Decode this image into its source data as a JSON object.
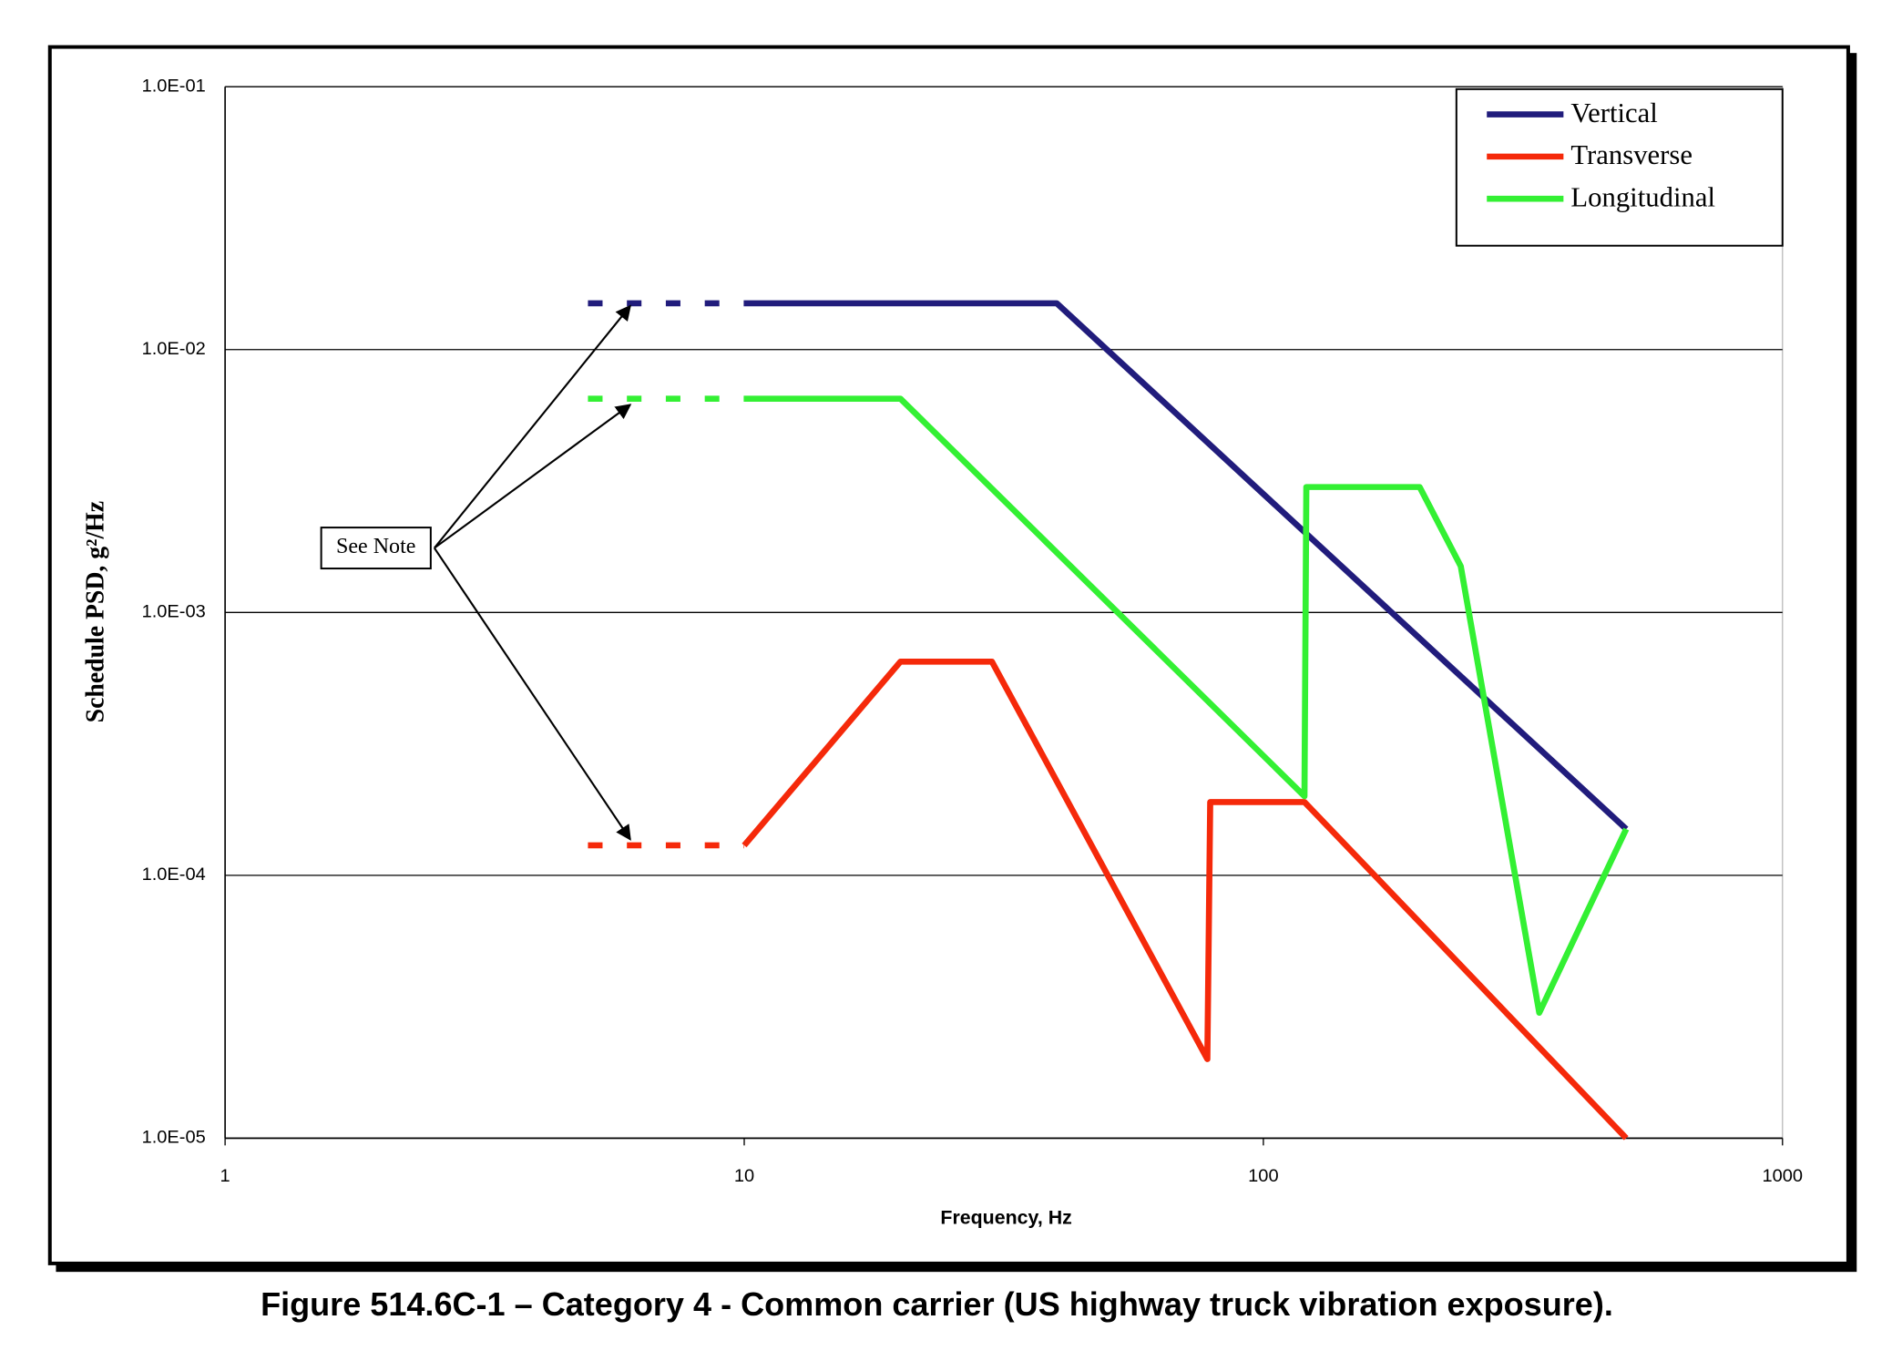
{
  "chart_data": {
    "type": "line",
    "caption": "Figure 514.6C-1 – Category 4 - Common carrier (US highway truck vibration exposure).",
    "x_label": "Frequency, Hz",
    "y_label": "Schedule PSD, g²/Hz",
    "annotation": "See Note",
    "log_x": true,
    "log_y": true,
    "grid": true,
    "legend": "top-right",
    "xlim": [
      1,
      1000
    ],
    "xticks": [
      1,
      10,
      100,
      1000
    ],
    "ylim": [
      1e-05,
      0.1
    ],
    "yticks": [
      {
        "value": 0.1,
        "label": "1.0E-01"
      },
      {
        "value": 0.01,
        "label": "1.0E-02"
      },
      {
        "value": 0.001,
        "label": "1.0E-03"
      },
      {
        "value": 0.0001,
        "label": "1.0E-04"
      },
      {
        "value": 1e-05,
        "label": "1.0E-05"
      }
    ],
    "series": [
      {
        "name": "Vertical",
        "color": "#211c7c",
        "x": [
          10,
          40,
          500
        ],
        "values": [
          0.015,
          0.015,
          0.00015
        ],
        "dashed_x": [
          5,
          10
        ],
        "dashed_values": [
          0.015,
          0.015
        ]
      },
      {
        "name": "Transverse",
        "color": "#f5290a",
        "x": [
          10,
          20,
          30,
          78,
          79,
          120,
          500
        ],
        "values": [
          0.00013,
          0.00065,
          0.00065,
          2e-05,
          0.00019,
          0.00019,
          1e-05
        ],
        "dashed_x": [
          5,
          10
        ],
        "dashed_values": [
          0.00013,
          0.00013
        ]
      },
      {
        "name": "Longitudinal",
        "color": "#33f033",
        "x": [
          10,
          20,
          120,
          121,
          200,
          240,
          340,
          500
        ],
        "values": [
          0.0065,
          0.0065,
          0.0002,
          0.003,
          0.003,
          0.0015,
          3e-05,
          0.00015
        ],
        "dashed_x": [
          5,
          10
        ],
        "dashed_values": [
          0.0065,
          0.0065
        ]
      }
    ]
  }
}
